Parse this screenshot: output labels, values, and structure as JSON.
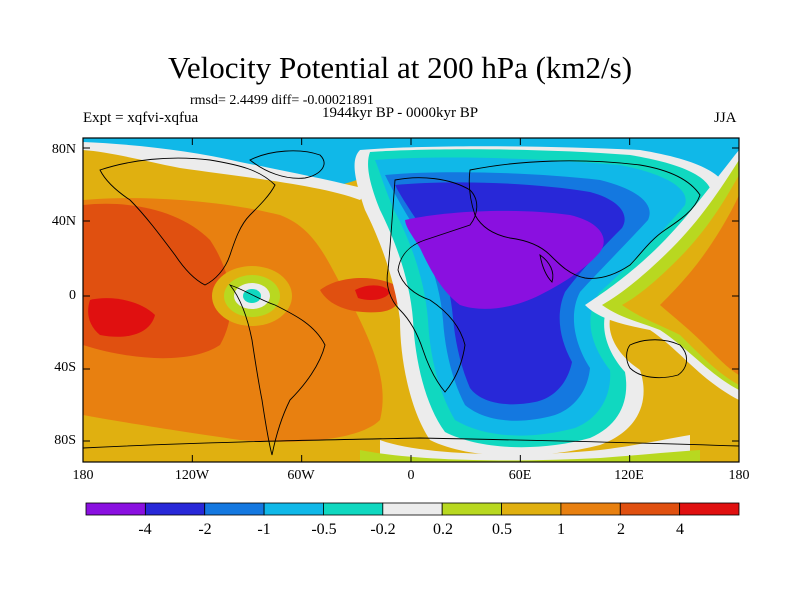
{
  "title": "Velocity Potential at 200 hPa (km2/s)",
  "stats": "rmsd= 2.4499 diff= -0.00021891",
  "experiment": "Expt = xqfvi-xqfua",
  "period": "1944kyr BP - 0000kyr BP",
  "season": "JJA",
  "y_ticks": [
    "80N",
    "40N",
    "0",
    "40S",
    "80S"
  ],
  "x_ticks": [
    "180",
    "120W",
    "60W",
    "0",
    "60E",
    "120E",
    "180"
  ],
  "colorbar": {
    "labels": [
      "-4",
      "-2",
      "-1",
      "-0.5",
      "-0.2",
      "0.2",
      "0.5",
      "1",
      "2",
      "4"
    ],
    "colors": [
      "#8a10e0",
      "#2828d8",
      "#1478e0",
      "#10b8e8",
      "#10d8c0",
      "#ececec",
      "#b8d820",
      "#e0b010",
      "#e88010",
      "#e05010",
      "#e01010"
    ]
  },
  "field_colors": {
    "deep_neg": "#8a10e0",
    "neg": "#2828d8",
    "mid_neg": "#1478e0",
    "light_neg": "#10b8e8",
    "near_zero_neg": "#10d8c0",
    "zero": "#ececec",
    "light_pos": "#b8d820",
    "pos": "#e0b010",
    "mid_pos": "#e88010",
    "high_pos": "#e05010",
    "max_pos": "#e01010"
  }
}
